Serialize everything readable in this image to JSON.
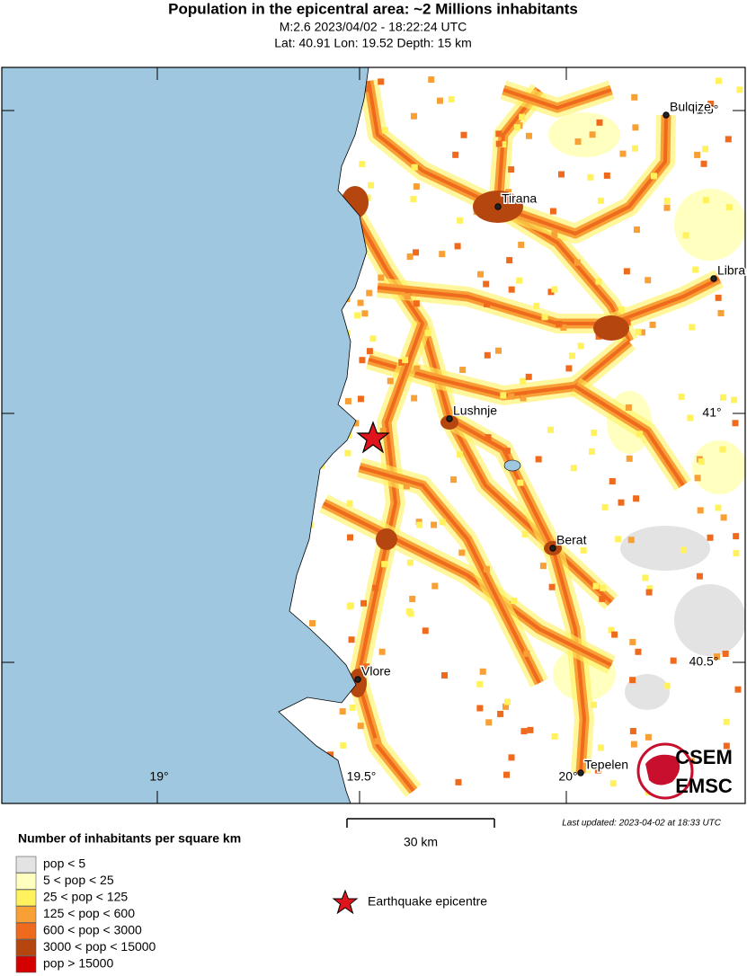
{
  "header": {
    "title": "Population in the epicentral area: ~2 Millions inhabitants",
    "line1": "M:2.6 2023/04/02 - 18:22:24 UTC",
    "line2": "Lat: 40.91 Lon: 19.52 Depth: 15 km"
  },
  "map": {
    "lat_labels": [
      "41.5°",
      "41°",
      "40.5°"
    ],
    "lon_labels": [
      "19°",
      "19.5°",
      "20°"
    ],
    "cities": [
      "Bulqize",
      "Tirana",
      "Libra",
      "Lushnje",
      "Berat",
      "Vlore",
      "Tepelen"
    ],
    "scale": "30 km",
    "updated": "Last updated: 2023-04-02 at 18:33 UTC",
    "logo": [
      "CSEM",
      "EMSC"
    ]
  },
  "legend": {
    "title": "Number of inhabitants per square km",
    "items": [
      {
        "label": "pop < 5",
        "color": "#e3e3e3"
      },
      {
        "label": "5 < pop < 25",
        "color": "#ffffc0"
      },
      {
        "label": "25 < pop < 125",
        "color": "#fff25c"
      },
      {
        "label": "125 < pop < 600",
        "color": "#f8a035"
      },
      {
        "label": "600 < pop < 3000",
        "color": "#ef6a1d"
      },
      {
        "label": "3000 < pop < 15000",
        "color": "#b5460f"
      },
      {
        "label": "pop > 15000",
        "color": "#d40000"
      }
    ],
    "epicentre": "Earthquake epicentre"
  }
}
